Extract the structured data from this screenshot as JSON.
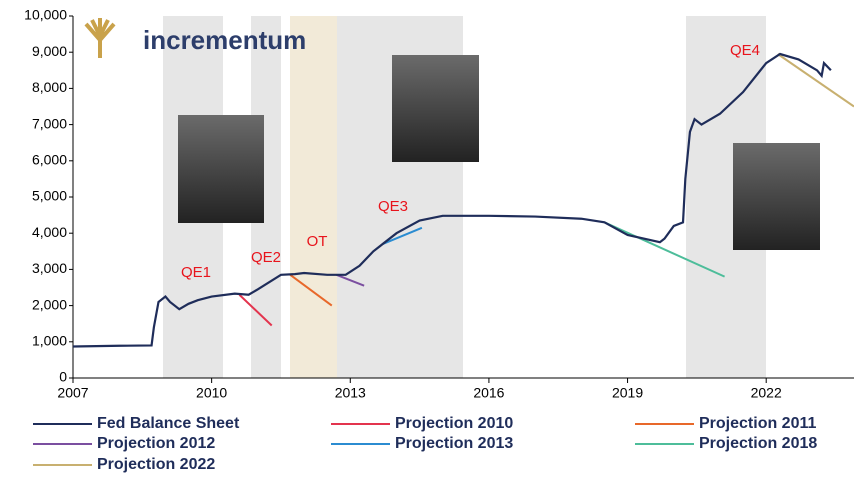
{
  "brand": "incrementum",
  "chart_data": {
    "type": "line",
    "xlim": [
      2007,
      2023.9
    ],
    "xticks": [
      2007,
      2010,
      2013,
      2016,
      2019,
      2022
    ],
    "ylim": [
      0,
      10000
    ],
    "yticks": [
      0,
      {
        "value": 1000,
        "label": "1,000"
      },
      {
        "value": 2000,
        "label": "2,000"
      },
      {
        "value": 3000,
        "label": "3,000"
      },
      {
        "value": 4000,
        "label": "4,000"
      },
      {
        "value": 5000,
        "label": "5,000"
      },
      {
        "value": 6000,
        "label": "6,000"
      },
      {
        "value": 7000,
        "label": "7,000"
      },
      {
        "value": 8000,
        "label": "8,000"
      },
      {
        "value": 9000,
        "label": "9,000"
      },
      {
        "value": 10000,
        "label": "10,000"
      }
    ],
    "annotations": [
      "QE1",
      "QE2",
      "OT",
      "QE3",
      "QE4"
    ],
    "annotation_color": "#e8141c",
    "series": [
      {
        "name": "Fed Balance Sheet",
        "color": "#1f2d5a",
        "x": [
          2007,
          2008,
          2008.7,
          2008.75,
          2008.85,
          2009.0,
          2009.1,
          2009.3,
          2009.5,
          2009.7,
          2010,
          2010.5,
          2010.8,
          2011.0,
          2011.5,
          2011.8,
          2012.0,
          2012.5,
          2012.9,
          2013.2,
          2013.5,
          2014.0,
          2014.5,
          2015.0,
          2016,
          2017,
          2018,
          2018.5,
          2019,
          2019.7,
          2019.8,
          2020.0,
          2020.2,
          2020.25,
          2020.35,
          2020.45,
          2020.6,
          2021.0,
          2021.5,
          2022.0,
          2022.3,
          2022.7,
          2023.1,
          2023.2,
          2023.25,
          2023.4
        ],
        "values": [
          870,
          890,
          900,
          1400,
          2100,
          2250,
          2100,
          1900,
          2050,
          2150,
          2250,
          2330,
          2300,
          2450,
          2850,
          2870,
          2900,
          2850,
          2850,
          3100,
          3500,
          4000,
          4350,
          4480,
          4480,
          4460,
          4400,
          4300,
          3950,
          3750,
          3850,
          4200,
          4300,
          5500,
          6800,
          7150,
          7000,
          7300,
          7900,
          8700,
          8950,
          8800,
          8500,
          8350,
          8700,
          8500
        ]
      },
      {
        "name": "Projection 2010",
        "color": "#e3344e",
        "x": [
          2010.6,
          2011.3
        ],
        "values": [
          2300,
          1450
        ]
      },
      {
        "name": "Projection 2011",
        "color": "#e8682a",
        "x": [
          2011.7,
          2012.6
        ],
        "values": [
          2850,
          2000
        ]
      },
      {
        "name": "Projection 2012",
        "color": "#7b4fa0",
        "x": [
          2012.7,
          2013.3
        ],
        "values": [
          2850,
          2550
        ]
      },
      {
        "name": "Projection 2013",
        "color": "#2b8cd1",
        "x": [
          2013.7,
          2014.55
        ],
        "values": [
          3700,
          4150
        ]
      },
      {
        "name": "Projection 2018",
        "color": "#4dbd9a",
        "x": [
          2018.5,
          2021.1
        ],
        "values": [
          4300,
          2800
        ]
      },
      {
        "name": "Projection 2022",
        "color": "#c8b070",
        "x": [
          2022.25,
          2023.9
        ],
        "values": [
          8950,
          7500
        ]
      }
    ]
  }
}
